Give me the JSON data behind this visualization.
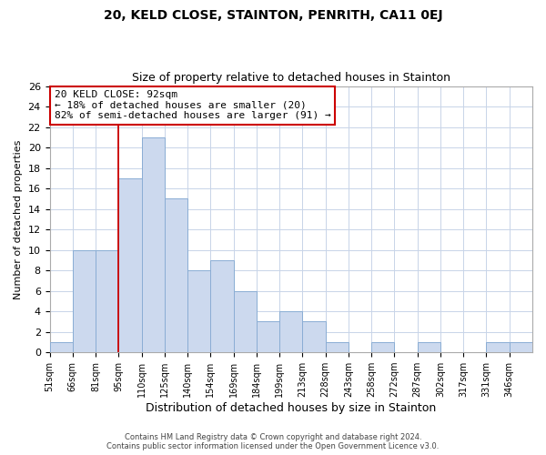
{
  "title": "20, KELD CLOSE, STAINTON, PENRITH, CA11 0EJ",
  "subtitle": "Size of property relative to detached houses in Stainton",
  "xlabel": "Distribution of detached houses by size in Stainton",
  "ylabel": "Number of detached properties",
  "bin_labels": [
    "51sqm",
    "66sqm",
    "81sqm",
    "95sqm",
    "110sqm",
    "125sqm",
    "140sqm",
    "154sqm",
    "169sqm",
    "184sqm",
    "199sqm",
    "213sqm",
    "228sqm",
    "243sqm",
    "258sqm",
    "272sqm",
    "287sqm",
    "302sqm",
    "317sqm",
    "331sqm",
    "346sqm"
  ],
  "bar_heights": [
    1,
    10,
    10,
    17,
    21,
    15,
    8,
    9,
    6,
    3,
    4,
    3,
    1,
    0,
    1,
    0,
    1,
    0,
    0,
    1,
    1
  ],
  "bar_color": "#ccd9ee",
  "bar_edge_color": "#8aadd4",
  "vline_x_idx": 3,
  "vline_color": "#cc0000",
  "annotation_line1": "20 KELD CLOSE: 92sqm",
  "annotation_line2": "← 18% of detached houses are smaller (20)",
  "annotation_line3": "82% of semi-detached houses are larger (91) →",
  "annotation_box_color": "#ffffff",
  "annotation_box_edge": "#cc0000",
  "ylim": [
    0,
    26
  ],
  "yticks": [
    0,
    2,
    4,
    6,
    8,
    10,
    12,
    14,
    16,
    18,
    20,
    22,
    24,
    26
  ],
  "footer_line1": "Contains HM Land Registry data © Crown copyright and database right 2024.",
  "footer_line2": "Contains public sector information licensed under the Open Government Licence v3.0.",
  "background_color": "#ffffff",
  "grid_color": "#c8d4e8"
}
